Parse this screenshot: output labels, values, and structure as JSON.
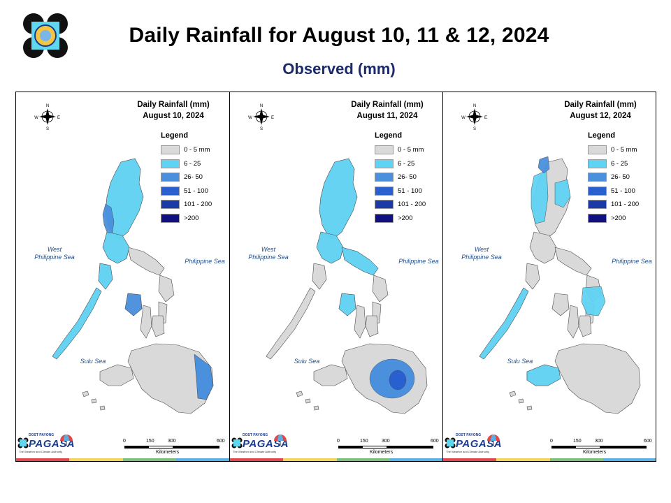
{
  "title": "Daily Rainfall for August 10, 11 & 12, 2024",
  "subtitle": "Observed (mm)",
  "colors": {
    "subtitle": "#1a2a6c",
    "land_base": "#d9d9d9",
    "border": "#4a4a4a"
  },
  "legend": {
    "title": "Legend",
    "classes": [
      {
        "label": "0 - 5 mm",
        "color": "#d9d9d9"
      },
      {
        "label": "6 - 25",
        "color": "#5fd3f3"
      },
      {
        "label": "26- 50",
        "color": "#4a90dd"
      },
      {
        "label": "51 - 100",
        "color": "#2a5fcf"
      },
      {
        "label": "101 - 200",
        "color": "#1b3aa8"
      },
      {
        "label": ">200",
        "color": "#101080"
      }
    ]
  },
  "compass": {
    "n": "N",
    "s": "S",
    "e": "E",
    "w": "W"
  },
  "seas": {
    "west": "West\nPhilippine Sea",
    "east": "Philippine Sea",
    "sulu": "Sulu Sea"
  },
  "scale": {
    "ticks": [
      "0",
      "150",
      "300",
      "600"
    ],
    "unit": "Kilometers"
  },
  "brand": {
    "small": "DOST  PAYONG",
    "name": "PAGASA",
    "tagline": "The Weather and Climate Authority"
  },
  "stripe_colors": [
    "#e0474c",
    "#f2d25a",
    "#7bbf7a",
    "#5aaee0"
  ],
  "panels": [
    {
      "title": "Daily Rainfall (mm)",
      "date": "August 10, 2024",
      "rainfall_by_area": {
        "North Luzon": "6 - 25",
        "Northwest Luzon coast": "26- 50",
        "Central Luzon": "6 - 25",
        "Mindoro": "6 - 25",
        "Panay": "26- 50",
        "Palawan": "6 - 25",
        "East Mindanao": "26- 50"
      }
    },
    {
      "title": "Daily Rainfall (mm)",
      "date": "August 11, 2024",
      "rainfall_by_area": {
        "North Luzon": "6 - 25",
        "Central Luzon": "6 - 25",
        "Panay": "6 - 25",
        "Bicol": "6 - 25",
        "Central Mindanao": "26- 50",
        "Mindanao core": "51 - 100"
      }
    },
    {
      "title": "Daily Rainfall (mm)",
      "date": "August 12, 2024",
      "rainfall_by_area": {
        "Ilocos": "6 - 25",
        "Northwest tip": "26- 50",
        "Cagayan Valley": "6 - 25",
        "Eastern Visayas": "6 - 25",
        "Palawan": "6 - 25",
        "Western Mindanao": "6 - 25"
      }
    }
  ]
}
